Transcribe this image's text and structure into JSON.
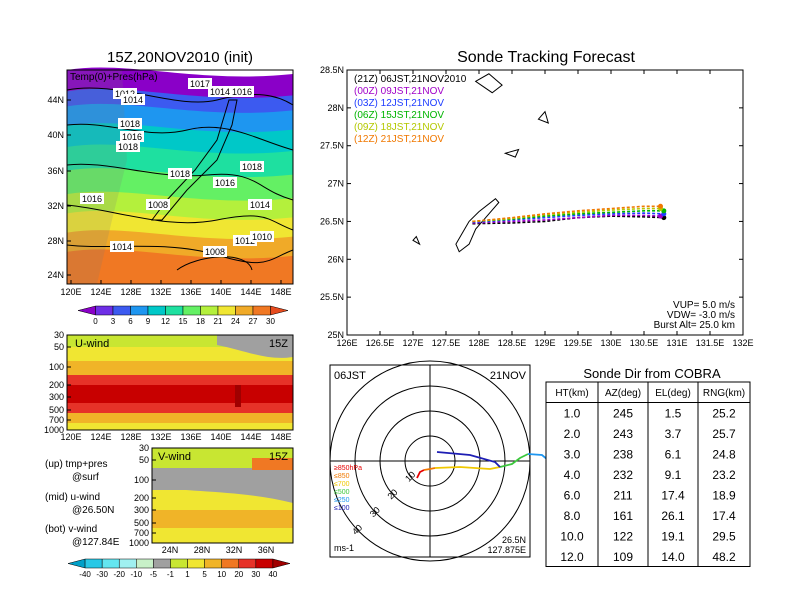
{
  "map_panel": {
    "title": "15Z,20NOV2010 (init)",
    "label": "Temp(0)+Pres(hPa)",
    "lat_ticks": [
      "44N",
      "40N",
      "36N",
      "32N",
      "28N",
      "24N"
    ],
    "lon_ticks": [
      "120E",
      "124E",
      "128E",
      "132E",
      "136E",
      "140E",
      "144E",
      "148E"
    ],
    "isobar_labels": [
      "1012",
      "1014",
      "1017",
      "1014",
      "1016",
      "1008",
      "1018",
      "1016",
      "1018",
      "1018",
      "1016",
      "1018",
      "1014",
      "1016",
      "1014",
      "1012",
      "1010",
      "1008"
    ],
    "colorbar": {
      "ticks": [
        "0",
        "3",
        "6",
        "9",
        "12",
        "15",
        "18",
        "21",
        "24",
        "27",
        "30"
      ],
      "colors": [
        "#8a00c8",
        "#6e2ee6",
        "#3c5af0",
        "#1e96f0",
        "#00c8c8",
        "#1ee0a0",
        "#64f064",
        "#b4f03c",
        "#f0e632",
        "#f0aa28",
        "#f07823",
        "#e64b1e"
      ]
    }
  },
  "uwind_panel": {
    "label": "U-wind",
    "time": "15Z",
    "p_ticks": [
      "30",
      "50",
      "100",
      "200",
      "300",
      "500",
      "700",
      "1000"
    ],
    "lon_ticks": [
      "120E",
      "124E",
      "128E",
      "132E",
      "136E",
      "140E",
      "144E",
      "148E"
    ]
  },
  "vwind_panel": {
    "label": "V-wind",
    "time": "15Z",
    "p_ticks": [
      "30",
      "50",
      "100",
      "200",
      "300",
      "500",
      "700",
      "1000"
    ],
    "lat_ticks": [
      "24N",
      "28N",
      "32N",
      "36N"
    ]
  },
  "wind_colorbar": {
    "ticks": [
      "-40",
      "-30",
      "-20",
      "-10",
      "-5",
      "-1",
      "1",
      "5",
      "10",
      "20",
      "30",
      "40"
    ],
    "colors": [
      "#00a0c8",
      "#28c8e6",
      "#64e6f0",
      "#a0f0f0",
      "#c8f0c8",
      "#a0a0a0",
      "#c8e632",
      "#f0e632",
      "#f0b428",
      "#f07823",
      "#e63228",
      "#c80000",
      "#a00000"
    ]
  },
  "legend_text": {
    "up": "(up) tmp+pres",
    "up2": "@surf",
    "mid": "(mid) u-wind",
    "mid2": "@26.50N",
    "bot": "(bot) v-wind",
    "bot2": "@127.84E"
  },
  "tracking": {
    "title": "Sonde Tracking Forecast",
    "lat_ticks": [
      "28.5N",
      "28N",
      "27.5N",
      "27N",
      "26.5N",
      "26N",
      "25.5N",
      "25N"
    ],
    "lon_ticks": [
      "126E",
      "126.5E",
      "127E",
      "127.5E",
      "128E",
      "128.5E",
      "129E",
      "129.5E",
      "130E",
      "130.5E",
      "131E",
      "131.5E",
      "132E"
    ],
    "launches": [
      {
        "label": "(21Z)  06JST,21NOV2010",
        "color": "#000000"
      },
      {
        "label": "(00Z)  09JST,21NOV",
        "color": "#a000c8"
      },
      {
        "label": "(03Z)  12JST,21NOV",
        "color": "#1e3cff"
      },
      {
        "label": "(06Z)  15JST,21NOV",
        "color": "#00b400"
      },
      {
        "label": "(09Z)  18JST,21NOV",
        "color": "#b4c800"
      },
      {
        "label": "(12Z)  21JST,21NOV",
        "color": "#f07800"
      }
    ],
    "params": {
      "vup": "VUP=  5.0  m/s",
      "vdw": "VDW= -3.0  m/s",
      "burst": "Burst Alt=  25.0  km"
    }
  },
  "polar": {
    "left_label": "06JST",
    "right_label": "21NOV",
    "ring_labels": [
      "10",
      "20",
      "30",
      "40"
    ],
    "units": "ms-1",
    "pos1": "26.5N",
    "pos2": "127.875E",
    "pressure_legend": [
      {
        "label": "≥850hPa",
        "color": "#e60000"
      },
      {
        "label": "≤850",
        "color": "#f07800"
      },
      {
        "label": "≤700",
        "color": "#f0c800"
      },
      {
        "label": "≤500",
        "color": "#3cc83c"
      },
      {
        "label": "≤250",
        "color": "#1e96f0"
      },
      {
        "label": "≤100",
        "color": "#1e1eb4"
      }
    ]
  },
  "cobra_table": {
    "title": "Sonde Dir from COBRA",
    "headers": [
      "HT(km)",
      "AZ(deg)",
      "EL(deg)",
      "RNG(km)"
    ],
    "rows": [
      [
        "1.0",
        "245",
        "1.5",
        "25.2"
      ],
      [
        "2.0",
        "243",
        "3.7",
        "25.7"
      ],
      [
        "3.0",
        "238",
        "6.1",
        "24.8"
      ],
      [
        "4.0",
        "232",
        "9.1",
        "23.2"
      ],
      [
        "6.0",
        "211",
        "17.4",
        "18.9"
      ],
      [
        "8.0",
        "161",
        "26.1",
        "17.4"
      ],
      [
        "10.0",
        "122",
        "19.1",
        "29.5"
      ],
      [
        "12.0",
        "109",
        "14.0",
        "48.2"
      ]
    ]
  },
  "chart_data": [
    {
      "type": "heatmap",
      "title": "15Z,20NOV2010 (init)",
      "subtitle": "Temp(0)+Pres(hPa)",
      "xlim": [
        120,
        150
      ],
      "ylim": [
        22,
        48
      ],
      "colorbar_values": [
        0,
        3,
        6,
        9,
        12,
        15,
        18,
        21,
        24,
        27,
        30
      ]
    },
    {
      "type": "line",
      "title": "Sonde Tracking Forecast",
      "xlim": [
        126,
        132
      ],
      "ylim": [
        25,
        28.5
      ],
      "series": [
        {
          "name": "(21Z)  06JST,21NOV2010",
          "x": [
            127.9,
            128.5,
            129.0,
            129.5,
            130.0,
            130.5,
            130.8
          ],
          "y": [
            26.47,
            26.48,
            26.5,
            26.55,
            26.57,
            26.56,
            26.55
          ]
        },
        {
          "name": "(00Z)  09JST,21NOV",
          "x": [
            127.9,
            128.5,
            129.0,
            129.5,
            130.0,
            130.5,
            130.75
          ],
          "y": [
            26.48,
            26.5,
            26.52,
            26.55,
            26.58,
            26.58,
            26.57
          ]
        },
        {
          "name": "(03Z)  12JST,21NOV",
          "x": [
            127.9,
            128.5,
            129.0,
            129.5,
            130.0,
            130.5,
            130.8
          ],
          "y": [
            26.49,
            26.52,
            26.55,
            26.58,
            26.6,
            26.61,
            26.6
          ]
        },
        {
          "name": "(06Z)  15JST,21NOV",
          "x": [
            127.9,
            128.5,
            129.0,
            129.5,
            130.0,
            130.5,
            130.8
          ],
          "y": [
            26.5,
            26.53,
            26.57,
            26.6,
            26.62,
            26.64,
            26.64
          ]
        },
        {
          "name": "(09Z)  18JST,21NOV",
          "x": [
            127.9,
            128.5,
            129.0,
            129.5,
            130.0,
            130.5,
            130.75
          ],
          "y": [
            26.5,
            26.54,
            26.59,
            26.62,
            26.65,
            26.67,
            26.67
          ]
        },
        {
          "name": "(12Z)  21JST,21NOV",
          "x": [
            127.9,
            128.5,
            129.0,
            129.5,
            130.0,
            130.5,
            130.75
          ],
          "y": [
            26.5,
            26.55,
            26.6,
            26.64,
            26.67,
            26.7,
            26.7
          ]
        }
      ]
    }
  ]
}
